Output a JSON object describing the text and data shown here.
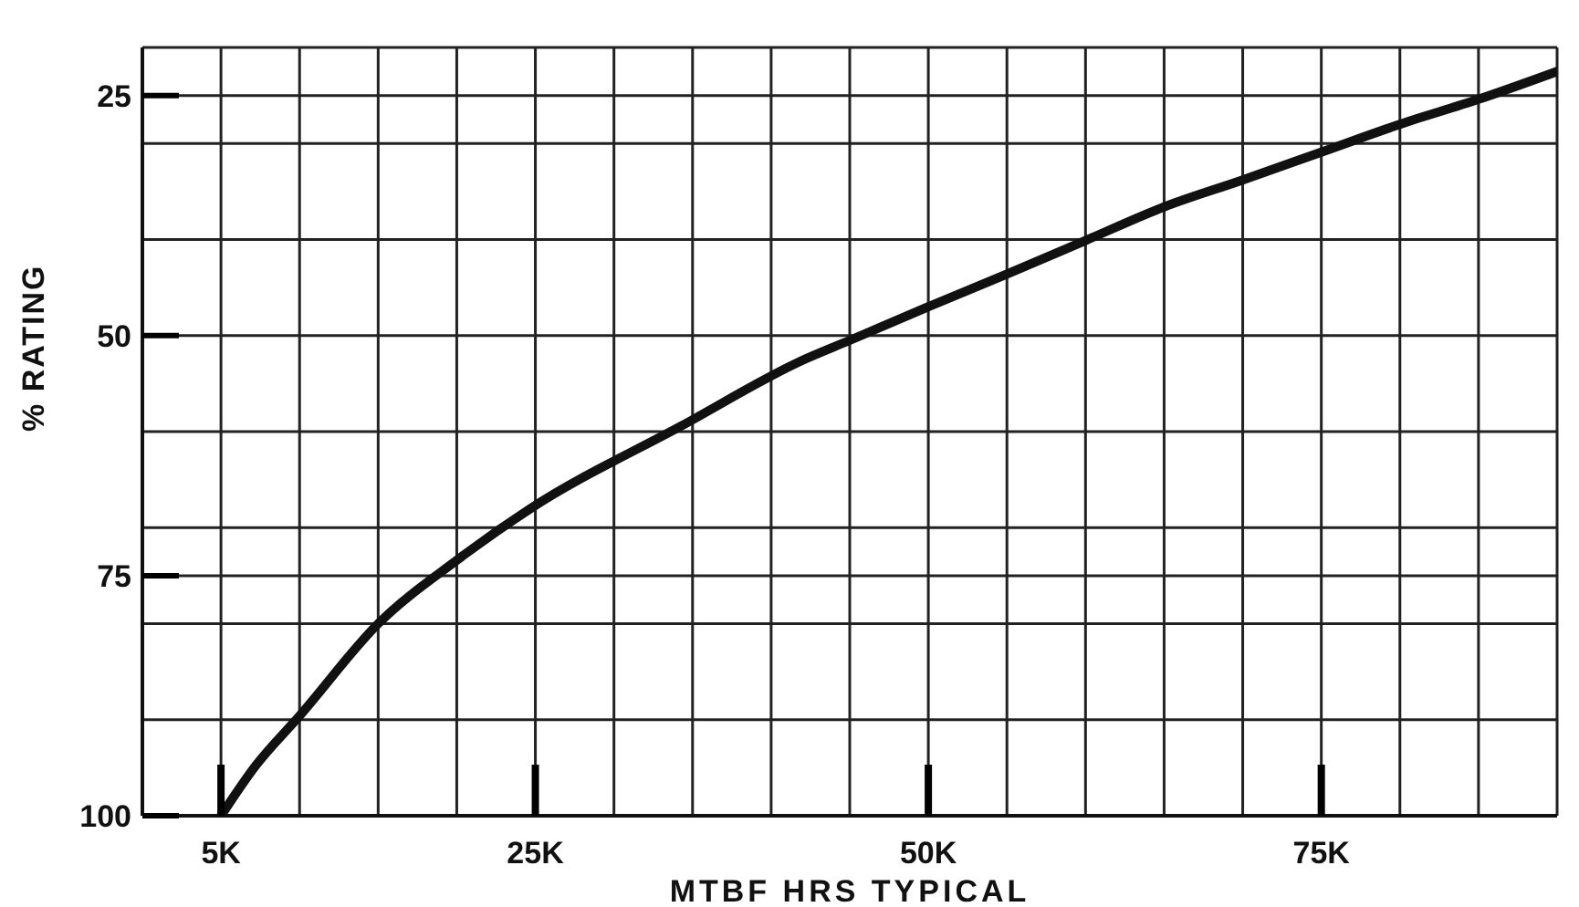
{
  "chart_data": {
    "type": "line",
    "xlabel": "MTBF HRS TYPICAL",
    "ylabel": "% RATING",
    "xlim": [
      0,
      90
    ],
    "ylim": [
      100,
      20
    ],
    "xticks": [
      {
        "value": 0,
        "label": null
      },
      {
        "value": 5,
        "label": "5K"
      },
      {
        "value": 10,
        "label": null
      },
      {
        "value": 15,
        "label": null
      },
      {
        "value": 20,
        "label": null
      },
      {
        "value": 25,
        "label": "25K"
      },
      {
        "value": 30,
        "label": null
      },
      {
        "value": 35,
        "label": null
      },
      {
        "value": 40,
        "label": null
      },
      {
        "value": 45,
        "label": null
      },
      {
        "value": 50,
        "label": "50K"
      },
      {
        "value": 55,
        "label": null
      },
      {
        "value": 60,
        "label": null
      },
      {
        "value": 65,
        "label": null
      },
      {
        "value": 70,
        "label": null
      },
      {
        "value": 75,
        "label": "75K"
      },
      {
        "value": 80,
        "label": null
      },
      {
        "value": 85,
        "label": null
      },
      {
        "value": 90,
        "label": null
      }
    ],
    "yticks": [
      {
        "value": 20,
        "label": null
      },
      25,
      {
        "value": 30,
        "label": null
      },
      {
        "value": 40,
        "label": null
      },
      50,
      {
        "value": 60,
        "label": null
      },
      {
        "value": 70,
        "label": null
      },
      75,
      {
        "value": 80,
        "label": null
      },
      {
        "value": 90,
        "label": null
      },
      100
    ],
    "grid": true,
    "marker": "none",
    "line_style": "solid",
    "series": [
      {
        "color": "#111111",
        "x": [
          5,
          7.2,
          10,
          15,
          20,
          24.7,
          34.3,
          42.1,
          45,
          50,
          55,
          60,
          65,
          70,
          75,
          80,
          85,
          90
        ],
        "values": [
          100,
          94.8,
          89.6,
          80,
          73.4,
          68,
          59.4,
          52.5,
          50.5,
          47,
          43.6,
          40.1,
          36.6,
          33.8,
          30.9,
          28,
          25.4,
          22.5
        ]
      }
    ]
  }
}
